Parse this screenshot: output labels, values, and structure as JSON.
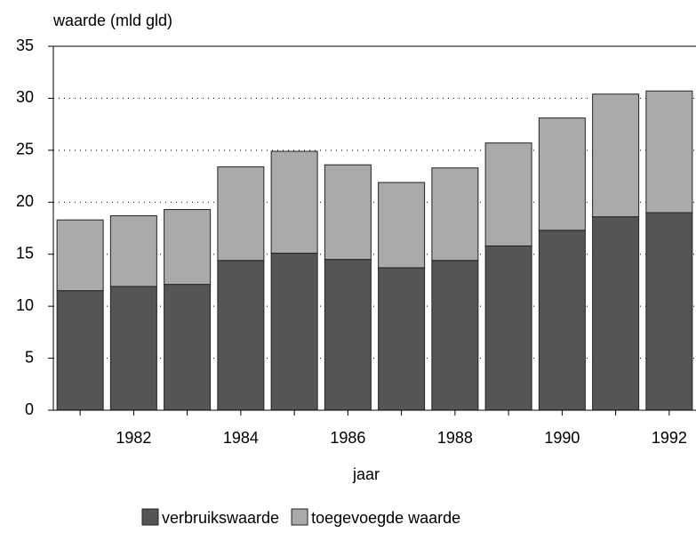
{
  "chart_data": {
    "type": "stacked-bar",
    "y_label": "waarde (mld gld)",
    "x_label": "jaar",
    "categories": [
      null,
      "1982",
      null,
      "1984",
      null,
      "1986",
      null,
      "1988",
      null,
      "1990",
      null,
      "1992"
    ],
    "series": [
      {
        "name": "verbruikswaarde",
        "color": "#555555",
        "values": [
          11.5,
          11.9,
          12.1,
          14.4,
          15.1,
          14.5,
          13.7,
          14.4,
          15.8,
          17.3,
          18.6,
          19.0
        ]
      },
      {
        "name": "toegevoegde waarde",
        "color": "#aaaaaa",
        "values": [
          6.8,
          6.8,
          7.2,
          9.0,
          9.8,
          9.1,
          8.2,
          8.9,
          9.9,
          10.8,
          11.8,
          11.7
        ]
      }
    ],
    "ylim": [
      0,
      35
    ],
    "yticks": [
      0,
      5,
      10,
      15,
      20,
      25,
      30,
      35
    ],
    "grid": true
  }
}
